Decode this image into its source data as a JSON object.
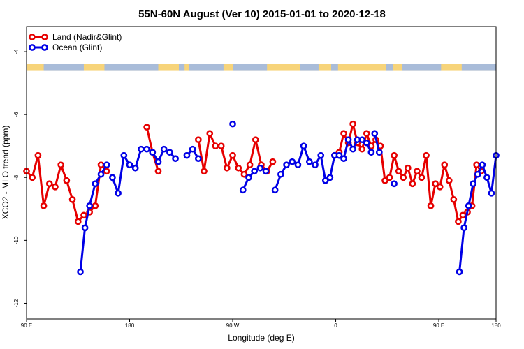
{
  "chart_data": {
    "type": "line",
    "title": "55N-60N August (Ver 10)   2015-01-01 to 2020-12-18",
    "xlabel": "Longitude (deg E)",
    "ylabel": "XCO2 - MLO trend (ppm)",
    "x_ticks": [
      "90 E",
      "180",
      "90 W",
      "0",
      "90 E",
      "180"
    ],
    "y_ticks": [
      "-4",
      "-6",
      "-8",
      "-10",
      "-12"
    ],
    "legend": [
      "Land (Nadir&Glint)",
      "Ocean (Glint)"
    ],
    "legend_position": "top-left",
    "grid": false,
    "land_mask_band": {
      "y": -4.5,
      "land_color": "#f7d47a",
      "ocean_color": "#a9bcd9"
    },
    "series": [
      {
        "name": "Land (Nadir&Glint)",
        "color": "#e60000",
        "segments": [
          [
            [
              90,
              -7.8
            ],
            [
              95,
              -8.0
            ],
            [
              100,
              -7.3
            ],
            [
              105,
              -8.9
            ],
            [
              110,
              -8.2
            ],
            [
              115,
              -8.3
            ],
            [
              120,
              -7.6
            ],
            [
              125,
              -8.1
            ],
            [
              130,
              -8.7
            ],
            [
              135,
              -9.4
            ],
            [
              140,
              -9.2
            ],
            [
              145,
              -9.1
            ],
            [
              150,
              -8.9
            ],
            [
              155,
              -7.6
            ],
            [
              160,
              -7.8
            ]
          ],
          [
            [
              195,
              -6.4
            ],
            [
              200,
              -7.2
            ],
            [
              205,
              -7.8
            ]
          ],
          [
            [
              240,
              -6.8
            ],
            [
              245,
              -7.8
            ],
            [
              250,
              -6.6
            ],
            [
              255,
              -7.0
            ],
            [
              260,
              -7.0
            ],
            [
              265,
              -7.7
            ],
            [
              270,
              -7.3
            ],
            [
              275,
              -7.7
            ],
            [
              280,
              -7.9
            ],
            [
              285,
              -7.6
            ],
            [
              290,
              -6.8
            ],
            [
              295,
              -7.6
            ],
            [
              300,
              -7.8
            ],
            [
              305,
              -7.5
            ]
          ],
          [
            [
              359,
              -7.3
            ],
            [
              363,
              -7.2
            ],
            [
              367,
              -6.6
            ],
            [
              371,
              -6.9
            ],
            [
              375,
              -6.3
            ],
            [
              379,
              -6.9
            ],
            [
              383,
              -7.1
            ],
            [
              387,
              -6.6
            ],
            [
              391,
              -7.0
            ],
            [
              395,
              -6.8
            ],
            [
              399,
              -7.0
            ],
            [
              403,
              -8.1
            ],
            [
              407,
              -8.0
            ],
            [
              411,
              -7.3
            ],
            [
              415,
              -7.8
            ],
            [
              419,
              -8.0
            ],
            [
              423,
              -7.7
            ],
            [
              427,
              -8.2
            ],
            [
              431,
              -7.8
            ],
            [
              435,
              -8.0
            ],
            [
              439,
              -7.3
            ],
            [
              443,
              -8.9
            ],
            [
              447,
              -8.2
            ],
            [
              451,
              -8.3
            ],
            [
              455,
              -7.6
            ],
            [
              459,
              -8.1
            ],
            [
              463,
              -8.7
            ],
            [
              467,
              -9.4
            ],
            [
              471,
              -9.2
            ],
            [
              475,
              -9.1
            ],
            [
              479,
              -8.9
            ],
            [
              483,
              -7.6
            ],
            [
              487,
              -7.8
            ]
          ]
        ]
      },
      {
        "name": "Ocean (Glint)",
        "color": "#0000e6",
        "segments": [
          [
            [
              137,
              -11.0
            ],
            [
              141,
              -9.6
            ],
            [
              145,
              -8.9
            ],
            [
              150,
              -8.2
            ],
            [
              155,
              -7.9
            ],
            [
              160,
              -7.6
            ]
          ],
          [
            [
              165,
              -8.0
            ],
            [
              170,
              -8.5
            ],
            [
              175,
              -7.3
            ],
            [
              180,
              -7.6
            ],
            [
              185,
              -7.7
            ],
            [
              190,
              -7.1
            ],
            [
              195,
              -7.1
            ],
            [
              200,
              -7.2
            ],
            [
              205,
              -7.5
            ],
            [
              210,
              -7.1
            ],
            [
              215,
              -7.2
            ],
            [
              220,
              -7.4
            ]
          ],
          [
            [
              230,
              -7.3
            ],
            [
              235,
              -7.1
            ],
            [
              240,
              -7.4
            ]
          ],
          [
            [
              270,
              -6.3
            ]
          ],
          [
            [
              279,
              -8.4
            ],
            [
              284,
              -8.0
            ],
            [
              289,
              -7.8
            ],
            [
              294,
              -7.7
            ],
            [
              299,
              -7.8
            ]
          ],
          [
            [
              307,
              -8.4
            ],
            [
              312,
              -7.9
            ],
            [
              317,
              -7.6
            ],
            [
              322,
              -7.5
            ],
            [
              327,
              -7.6
            ],
            [
              332,
              -7.0
            ],
            [
              337,
              -7.5
            ],
            [
              342,
              -7.6
            ],
            [
              347,
              -7.3
            ],
            [
              351,
              -8.1
            ],
            [
              355,
              -8.0
            ],
            [
              359,
              -7.3
            ],
            [
              363,
              -7.3
            ],
            [
              367,
              -7.4
            ],
            [
              371,
              -6.8
            ],
            [
              375,
              -7.1
            ],
            [
              379,
              -6.8
            ],
            [
              383,
              -6.8
            ],
            [
              387,
              -6.9
            ],
            [
              391,
              -7.2
            ]
          ],
          [
            [
              394,
              -6.6
            ],
            [
              398,
              -7.2
            ]
          ],
          [
            [
              411,
              -8.2
            ]
          ],
          [
            [
              468,
              -11.0
            ],
            [
              472,
              -9.6
            ],
            [
              476,
              -8.9
            ],
            [
              480,
              -8.2
            ],
            [
              484,
              -7.9
            ],
            [
              488,
              -7.6
            ],
            [
              492,
              -8.0
            ],
            [
              496,
              -8.5
            ],
            [
              500,
              -7.3
            ]
          ]
        ]
      }
    ],
    "xlim": [
      90,
      500
    ],
    "ylim": [
      -12.5,
      -3.2
    ]
  }
}
